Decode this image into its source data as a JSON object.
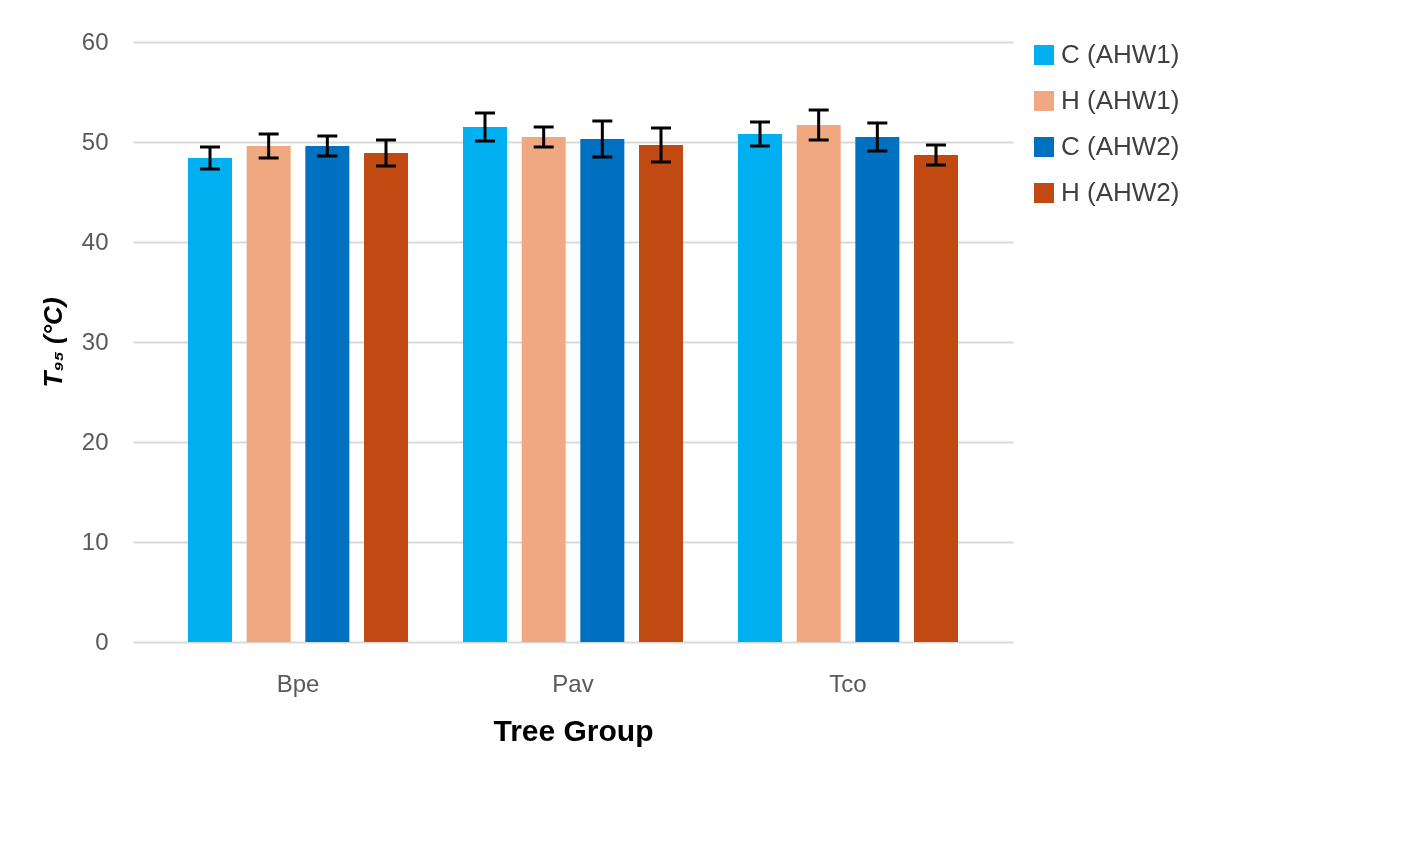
{
  "chart_data": {
    "type": "bar",
    "xlabel": "Tree Group",
    "ylabel": "T₉₅ (°C)",
    "categories": [
      "Bpe",
      "Pav",
      "Tco"
    ],
    "series": [
      {
        "name": "C (AHW1)",
        "color": "#00b0f0",
        "values": [
          48.4,
          51.5,
          50.8
        ],
        "errors": [
          1.1,
          1.4,
          1.2
        ]
      },
      {
        "name": "H (AHW1)",
        "color": "#f0a880",
        "values": [
          49.6,
          50.5,
          51.7
        ],
        "errors": [
          1.2,
          1.0,
          1.5
        ]
      },
      {
        "name": "C (AHW2)",
        "color": "#0070c0",
        "values": [
          49.6,
          50.3,
          50.5
        ],
        "errors": [
          1.0,
          1.8,
          1.4
        ]
      },
      {
        "name": "H (AHW2)",
        "color": "#c04a12",
        "values": [
          48.9,
          49.7,
          48.7
        ],
        "errors": [
          1.3,
          1.7,
          1.0
        ]
      }
    ],
    "ylim": [
      0,
      60
    ],
    "yticks": [
      0,
      10,
      20,
      30,
      40,
      50,
      60
    ],
    "grid": "y",
    "legend": "right"
  }
}
